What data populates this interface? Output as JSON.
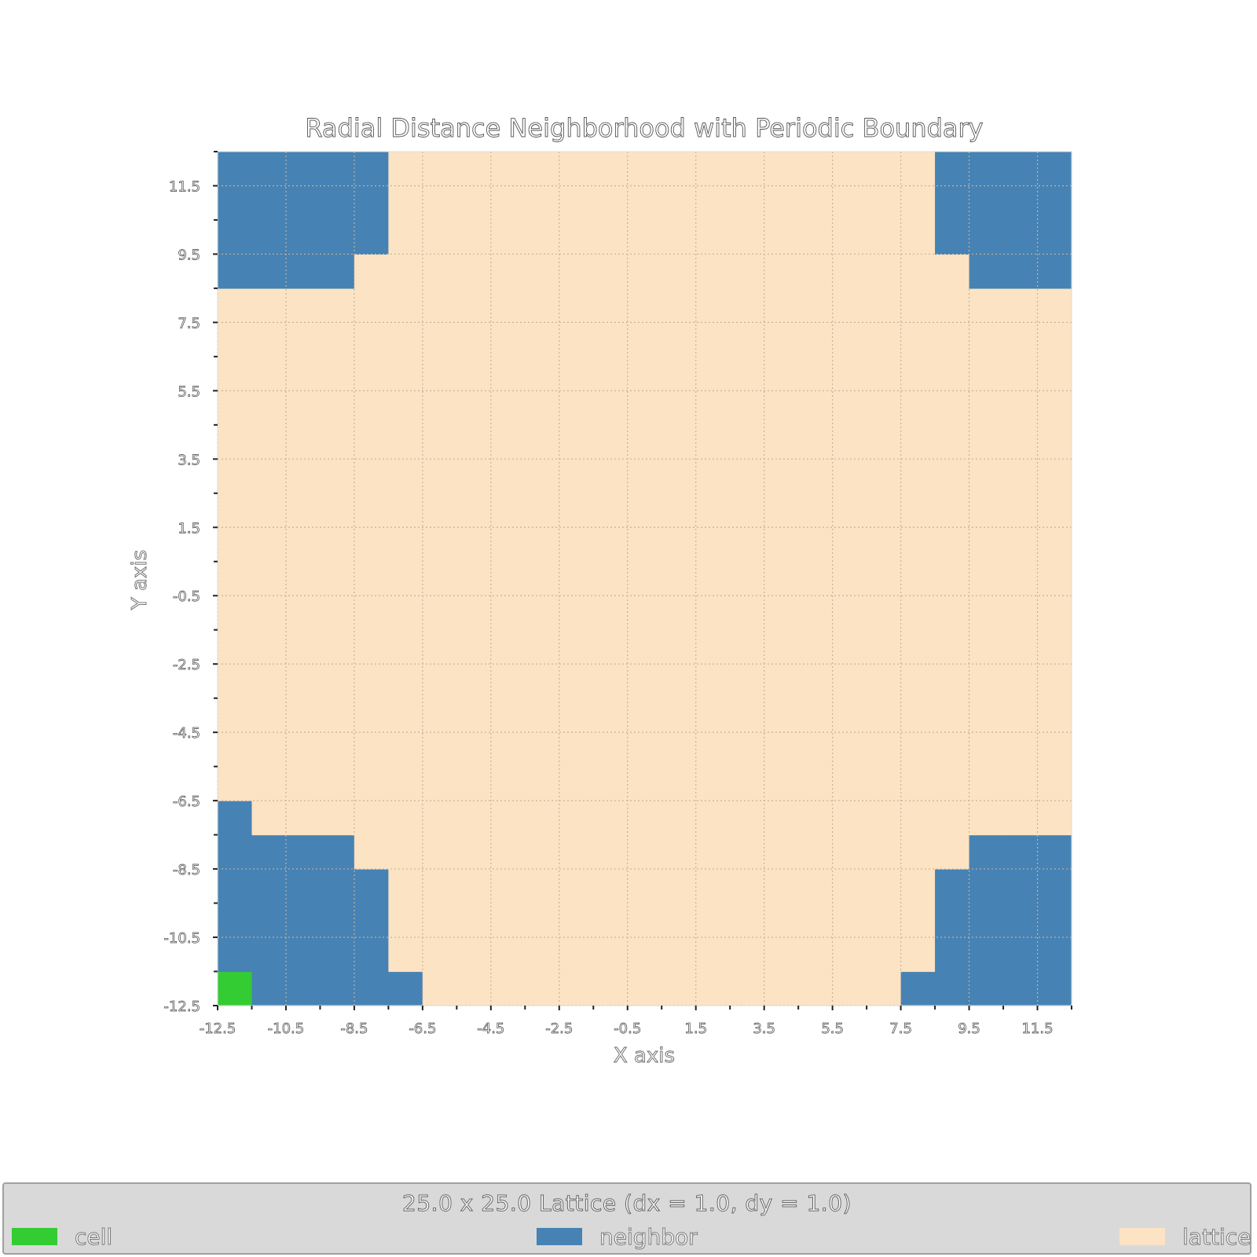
{
  "chart_data": {
    "type": "heatmap",
    "title": "Radial Distance Neighborhood with Periodic Boundary",
    "xlabel": "X axis",
    "ylabel": "Y axis",
    "xlim": [
      -12.5,
      12.5
    ],
    "ylim": [
      -12.5,
      12.5
    ],
    "x_ticks": [
      "-12.5",
      "-10.5",
      "-8.5",
      "-6.5",
      "-4.5",
      "-2.5",
      "-0.5",
      "1.5",
      "3.5",
      "5.5",
      "7.5",
      "9.5",
      "11.5"
    ],
    "y_ticks": [
      "-12.5",
      "-10.5",
      "-8.5",
      "-6.5",
      "-4.5",
      "-2.5",
      "-0.5",
      "1.5",
      "3.5",
      "5.5",
      "7.5",
      "9.5",
      "11.5"
    ],
    "grid": true,
    "lattice": {
      "nx": 25,
      "ny": 25,
      "x_min": -12.5,
      "y_min": -12.5,
      "dx": 1.0,
      "dy": 1.0
    },
    "cell": {
      "col": 0,
      "row": 0
    },
    "neighbor_rows": [
      {
        "row": 0,
        "cols": [
          [
            1,
            5
          ],
          [
            20,
            24
          ]
        ]
      },
      {
        "row": 1,
        "cols": [
          [
            0,
            4
          ],
          [
            21,
            24
          ]
        ]
      },
      {
        "row": 2,
        "cols": [
          [
            0,
            4
          ],
          [
            21,
            24
          ]
        ]
      },
      {
        "row": 3,
        "cols": [
          [
            0,
            4
          ],
          [
            21,
            24
          ]
        ]
      },
      {
        "row": 4,
        "cols": [
          [
            0,
            3
          ],
          [
            22,
            24
          ]
        ]
      },
      {
        "row": 5,
        "cols": [
          [
            0,
            0
          ]
        ]
      },
      {
        "row": 21,
        "cols": [
          [
            0,
            3
          ],
          [
            22,
            24
          ]
        ]
      },
      {
        "row": 22,
        "cols": [
          [
            0,
            4
          ],
          [
            21,
            24
          ]
        ]
      },
      {
        "row": 23,
        "cols": [
          [
            0,
            4
          ],
          [
            21,
            24
          ]
        ]
      },
      {
        "row": 24,
        "cols": [
          [
            0,
            4
          ],
          [
            21,
            24
          ]
        ]
      }
    ],
    "colors": {
      "cell": "#33cc33",
      "neighbor": "#4682b4",
      "lattice": "#fce3c4"
    }
  },
  "legend": {
    "title": "25.0 x 25.0 Lattice (dx = 1.0, dy = 1.0)",
    "items": [
      {
        "label": "cell",
        "color": "#33cc33"
      },
      {
        "label": "neighbor",
        "color": "#4682b4"
      },
      {
        "label": "lattice",
        "color": "#fce3c4"
      }
    ]
  }
}
